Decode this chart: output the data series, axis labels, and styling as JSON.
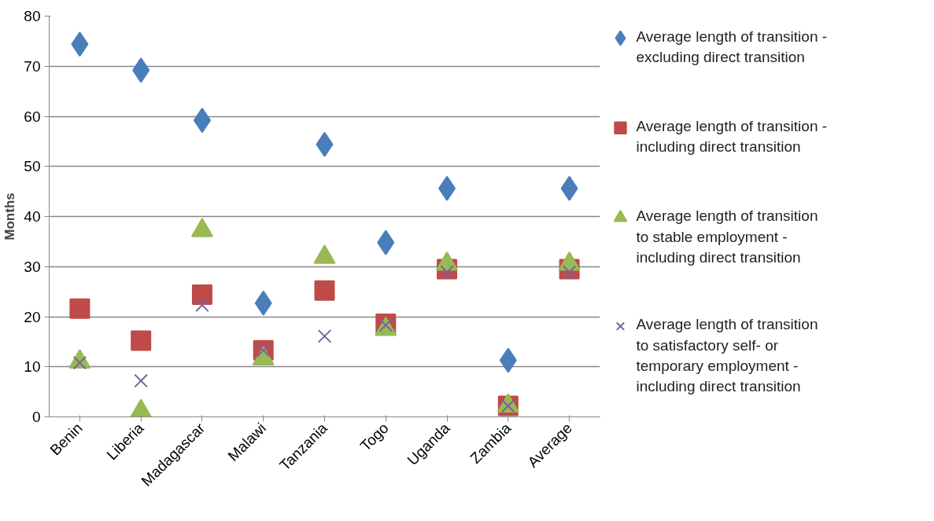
{
  "chart_data": {
    "type": "scatter",
    "ylabel": "Months",
    "categories": [
      "Benin",
      "Liberia",
      "Madagascar",
      "Malawi",
      "Tanzania",
      "Togo",
      "Uganda",
      "Zambia",
      "Average"
    ],
    "ylim": [
      0,
      80
    ],
    "yticks": [
      0,
      10,
      20,
      30,
      40,
      50,
      60,
      70,
      80
    ],
    "grid": "y",
    "legend": "right",
    "series": [
      {
        "name": "Average length of transition - excluding direct transition",
        "color": "#4a7ebb",
        "marker": "diamond",
        "values": [
          74.4,
          69.2,
          59.2,
          22.7,
          54.4,
          34.8,
          45.6,
          11.3,
          45.6
        ]
      },
      {
        "name": "Average length of transition - including direct transition",
        "color": "#be4b48",
        "marker": "square",
        "values": [
          21.6,
          15.2,
          24.4,
          13.3,
          25.2,
          18.6,
          29.5,
          2.2,
          29.5
        ]
      },
      {
        "name": "Average length of transition to stable employment - including direct transition",
        "color": "#98b954",
        "marker": "triangle",
        "values": [
          11,
          1.1,
          37.2,
          11.6,
          31.9,
          17.5,
          30.5,
          2.2,
          30.5
        ]
      },
      {
        "name": "Average length of transition to satisfactory self- or temporary employment - including direct transition",
        "color": "#7d60a0",
        "marker": "cross",
        "values": [
          10.8,
          7.2,
          22.3,
          13.3,
          16.1,
          18.3,
          28.9,
          2.2,
          28.9
        ]
      }
    ]
  }
}
